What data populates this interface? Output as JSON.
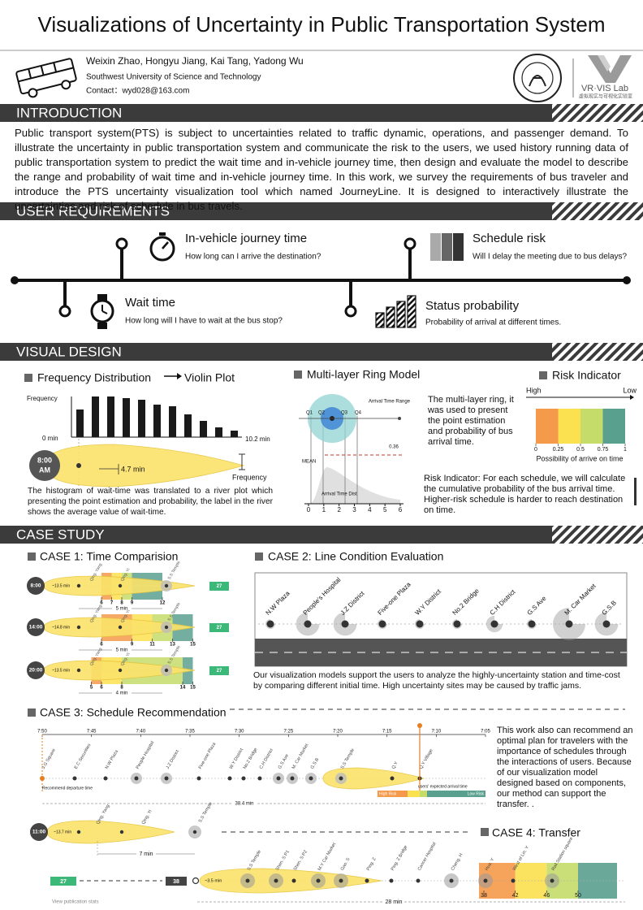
{
  "header": {
    "title": "Visualizations of Uncertainty in Public Transportation System",
    "authors": "Weixin Zhao, Hongyu Jiang, Kai Tang, Yadong Wu",
    "affiliation": "Southwest University of Science and Technology",
    "contact": "Contact：wyd028@163.com",
    "lab": "VR·VIS Lab",
    "lab_sub": "虚拟现实与可视化实验室"
  },
  "introduction": {
    "heading": "INTRODUCTION",
    "text": "Public transport system(PTS) is subject to uncertainties related to traffic dynamic, operations, and passenger demand. To illustrate the uncertainty in public transportation system and communicate the risk to the users, we used history running data of public transportation system to predict the wait time and in-vehicle journey time, then design and evaluate the model to describe the range and probability of wait time and in-vehicle journey time. In this work, we survey the requirements of bus traveler and introduce the PTS uncertainty visualization tool which named JourneyLine. It is designed to interactively illustrate the uncertainties and risk of schedule in bus travels."
  },
  "user_requirements": {
    "heading": "USER REQUIREMENTS",
    "items": [
      {
        "title": "In-vehicle journey time",
        "desc": "How long can I arrive the destination?"
      },
      {
        "title": "Schedule risk",
        "desc": "Will I delay the meeting due to bus delays?"
      },
      {
        "title": "Wait time",
        "desc": "How long will I have to wait at the bus stop?"
      },
      {
        "title": "Status probability",
        "desc": "Probability of arrival at different times."
      }
    ]
  },
  "visual_design": {
    "heading": "VISUAL DESIGN",
    "frequency": {
      "type": "bar",
      "title": "Frequency Distribution",
      "title_right": "Violin Plot",
      "y_label": "Frequency",
      "x_start": "0 min",
      "x_end": "10.2 min",
      "time": "8:00",
      "time_suffix": "AM",
      "average": "4.7 min",
      "width_label": "Frequency",
      "values": [
        34,
        50,
        50,
        48,
        46,
        40,
        38,
        28,
        20,
        12,
        8
      ],
      "ylim": [
        0,
        50
      ],
      "color": "#1a1a1a",
      "caption": "The histogram of wait-time was translated to a river plot which presenting the point estimation and probability, the label in the river shows the average value of wait-time."
    },
    "ring": {
      "title": "Multi-layer Ring Model",
      "quartiles": [
        "Q1",
        "Q2",
        "Q3",
        "Q4"
      ],
      "range_label": "Arrival Time Range",
      "mean_label": "MEAN",
      "threshold": 0.36,
      "dist_label": "Arrival Time Dist",
      "xlim": [
        0,
        6
      ],
      "xticks": [
        0,
        1,
        2,
        3,
        4,
        5,
        6
      ],
      "ylim": [
        0,
        0.6
      ],
      "text": "The multi-layer ring, it was used to present the point estimation and probability of bus arrival time."
    },
    "risk": {
      "title": "Risk Indicator",
      "high": "High",
      "low": "Low",
      "colors": [
        "#f5994a",
        "#fbe04f",
        "#c5dc6a",
        "#5aa08f"
      ],
      "xlim": [
        0,
        1
      ],
      "xticks": [
        0,
        0.25,
        0.5,
        0.75,
        1
      ],
      "x_label": "Possibility of arrive on time",
      "text": "Risk Indicator: For each schedule, we will calculate the cumulative probability of the bus arrival time. Higher-risk schedule is harder to reach destination on time."
    }
  },
  "case_study": {
    "heading": "CASE STUDY",
    "case1": {
      "title": "CASE 1: Time Comparision",
      "stations": [
        "Qing. Yang",
        "Qing. Yi",
        "S.S Temple"
      ],
      "xlim": [
        0,
        16
      ],
      "rows": [
        {
          "time": "8:00",
          "label": "~13.5 min",
          "ticks": [
            6,
            7,
            8,
            9,
            12
          ],
          "span": "5 min",
          "count": "27"
        },
        {
          "time": "14:00",
          "label": "~14.8 min",
          "ticks": [
            6,
            9,
            11,
            13,
            15
          ],
          "span": "5 min",
          "count": "27"
        },
        {
          "time": "20:00",
          "label": "~13.5 min",
          "ticks": [
            5,
            6,
            8,
            14,
            15
          ],
          "span": "4 min",
          "count": "27"
        }
      ]
    },
    "case2": {
      "title": "CASE 2: Line Condition Evaluation",
      "stations": [
        "N.W Plaza",
        "People's Hospital",
        "J.Z District",
        "Five-one Plaza",
        "W.Y District",
        "No.2 Bridge",
        "C.H District",
        "G.S Ave",
        "M. Car Market",
        "G.S.B"
      ],
      "uncertainty": [
        0,
        0.6,
        0.6,
        0,
        0,
        0,
        0.3,
        0,
        1,
        0.6
      ],
      "text": "Our visualization models support the users to analyze the highly-uncertainty station and time-cost by comparing different initial time. High uncertainty sites may be caused by traffic jams."
    },
    "case3": {
      "title": "CASE 3: Schedule Recommendation",
      "times": [
        "7:50",
        "7:45",
        "7:40",
        "7:35",
        "7:30",
        "7:25",
        "7:20",
        "7:15",
        "7:10",
        "7:05"
      ],
      "stations": [
        "J.G Square",
        "E.C Securities",
        "N.W Plaza",
        "People Hospital",
        "J.Z District",
        "Five-one Plaza",
        "W.Y District",
        "No.2 Bridge",
        "C.H District",
        "G.S Ave",
        "M. Car Market",
        "G.S.B",
        "S.S Temple",
        "Q.Y",
        "Q.Y Village"
      ],
      "recommend": "Recommend departure time",
      "expected": "users' expected arrival time",
      "high_risk": "High Risk",
      "low_risk": "Low Risk",
      "total": "38.4 min",
      "text": "This work also can recommend an optimal plan for travelers with the importance of schedules through the interactions of users. Because of our visualization model designed based on components, our method can support the transfer. ."
    },
    "case4": {
      "title": "CASE 4: Transfer",
      "time": "11:00",
      "label": "~13.7 min",
      "stations_first": [
        "Qing. Yang",
        "Qing. Yi",
        "S.S Temple"
      ],
      "span": "7 min",
      "count_first": "27",
      "count_second": "38",
      "label_second": "~3.5 min",
      "stations_second": [
        "S.S Temple",
        "Shen. S P1",
        "Shen. S P2",
        "M.Y Car Market",
        "Gao. S",
        "Ping. Z",
        "Ping. Z Bridge",
        "Cancer Hospital",
        "Cheng. H",
        "Hua. Y",
        "West of Lin. Y",
        "Rail Station square"
      ],
      "xlim": [
        38,
        50
      ],
      "xticks": [
        38,
        42,
        46,
        50
      ],
      "total": "28 min"
    },
    "footer": "View publication stats"
  }
}
